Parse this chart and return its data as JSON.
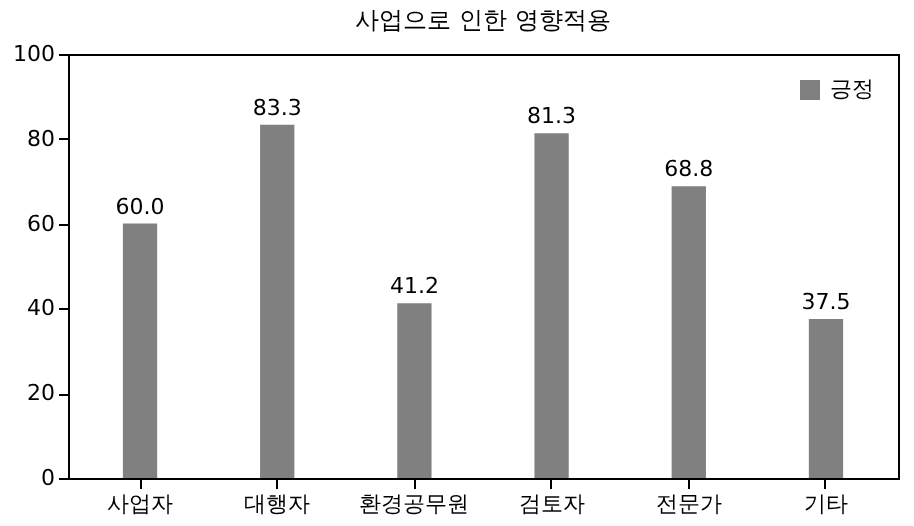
{
  "chart_data": {
    "type": "bar",
    "title": "사업으로 인한 영향적용",
    "categories": [
      "사업자",
      "대행자",
      "환경공무원",
      "검토자",
      "전문가",
      "기타"
    ],
    "series": [
      {
        "name": "긍정",
        "color": "#808080",
        "values": [
          60.0,
          83.3,
          41.2,
          81.3,
          68.8,
          37.5
        ],
        "value_labels": [
          "60.0",
          "83.3",
          "41.2",
          "81.3",
          "68.8",
          "37.5"
        ]
      }
    ],
    "ylim": [
      0,
      100
    ],
    "yticks": [
      0,
      20,
      40,
      60,
      80,
      100
    ],
    "grid": false,
    "legend": "top right"
  }
}
